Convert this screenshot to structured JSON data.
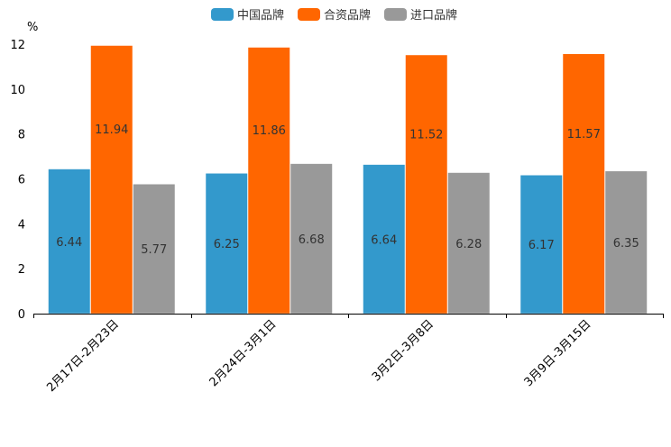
{
  "chart_data": {
    "type": "bar",
    "ylabel": "%",
    "ylim": [
      0,
      12
    ],
    "yticks": [
      "0",
      "2",
      "4",
      "6",
      "8",
      "10",
      "12"
    ],
    "categories": [
      "2月17日-2月23日",
      "2月24日-3月1日",
      "3月2日-3月8日",
      "3月9日-3月15日"
    ],
    "series": [
      {
        "name": "中国品牌",
        "color": "#3399cc",
        "values": [
          6.44,
          6.25,
          6.64,
          6.17
        ],
        "labels": [
          "6.44",
          "6.25",
          "6.64",
          "6.17"
        ]
      },
      {
        "name": "合资品牌",
        "color": "#ff6600",
        "values": [
          11.94,
          11.86,
          11.52,
          11.57
        ],
        "labels": [
          "11.94",
          "11.86",
          "11.52",
          "11.57"
        ]
      },
      {
        "name": "进口品牌",
        "color": "#999999",
        "values": [
          5.77,
          6.68,
          6.28,
          6.35
        ],
        "labels": [
          "5.77",
          "6.68",
          "6.28",
          "6.35"
        ]
      }
    ],
    "legend_position": "top-center"
  }
}
